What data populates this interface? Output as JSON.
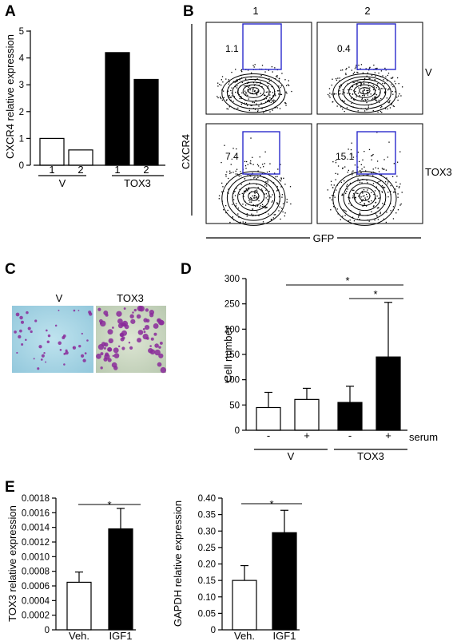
{
  "panels": {
    "A": "A",
    "B": "B",
    "C": "C",
    "D": "D",
    "E": "E"
  },
  "chart_data": [
    {
      "id": "A",
      "type": "bar",
      "categories": [
        "1",
        "2",
        "1",
        "2"
      ],
      "groups": [
        "V",
        "TOX3"
      ],
      "values": [
        1.0,
        0.57,
        4.2,
        3.2
      ],
      "fills": [
        "#ffffff",
        "#ffffff",
        "#000000",
        "#000000"
      ],
      "ylabel": "CXCR4 relative expression",
      "ylim": [
        0,
        5
      ],
      "yticks": [
        "0",
        "1",
        "2",
        "3",
        "4",
        "5"
      ]
    },
    {
      "id": "B",
      "type": "flow-cytometry",
      "col_labels": [
        "1",
        "2"
      ],
      "row_labels": [
        "V",
        "TOX3"
      ],
      "gate_percentages": [
        "1.1",
        "0.4",
        "7.4",
        "15.1"
      ],
      "ylabel": "CXCR4",
      "xlabel": "GFP"
    },
    {
      "id": "C",
      "type": "image",
      "labels": [
        "V",
        "TOX3"
      ]
    },
    {
      "id": "D",
      "type": "bar",
      "categories": [
        "-",
        "+",
        "-",
        "+"
      ],
      "groups": [
        "V",
        "TOX3"
      ],
      "extra_label": "serum",
      "values": [
        45,
        61,
        55,
        145
      ],
      "errors": [
        30,
        22,
        32,
        108
      ],
      "fills": [
        "#ffffff",
        "#ffffff",
        "#000000",
        "#000000"
      ],
      "ylabel": "Cell number",
      "ylim": [
        0,
        300
      ],
      "yticks": [
        "0",
        "50",
        "100",
        "150",
        "200",
        "250",
        "300"
      ],
      "sig": [
        "*",
        "*"
      ]
    },
    {
      "id": "E1",
      "type": "bar",
      "categories": [
        "Veh.",
        "IGF1"
      ],
      "values": [
        0.00065,
        0.00138
      ],
      "errors": [
        0.00014,
        0.00028
      ],
      "fills": [
        "#ffffff",
        "#000000"
      ],
      "ylabel": "TOX3 relative expression",
      "ylim": [
        0,
        0.0018
      ],
      "yticks": [
        "0",
        "0.0002",
        "0.0004",
        "0.0006",
        "0.0008",
        "0.0010",
        "0.0012",
        "0.0014",
        "0.0016",
        "0.0018"
      ],
      "sig": "*"
    },
    {
      "id": "E2",
      "type": "bar",
      "categories": [
        "Veh.",
        "IGF1"
      ],
      "values": [
        0.15,
        0.295
      ],
      "errors": [
        0.045,
        0.068
      ],
      "fills": [
        "#ffffff",
        "#000000"
      ],
      "ylabel": "GAPDH relative expression",
      "ylim": [
        0,
        0.4
      ],
      "yticks": [
        "0",
        "0.05",
        "0.10",
        "0.15",
        "0.20",
        "0.25",
        "0.30",
        "0.35",
        "0.40"
      ],
      "sig": "*"
    }
  ],
  "colors": {
    "gate": "#2a2acc",
    "stain": "#8a2a9a",
    "field_v": "#a8d6e6",
    "field_tox3": "#cfdcc6"
  }
}
